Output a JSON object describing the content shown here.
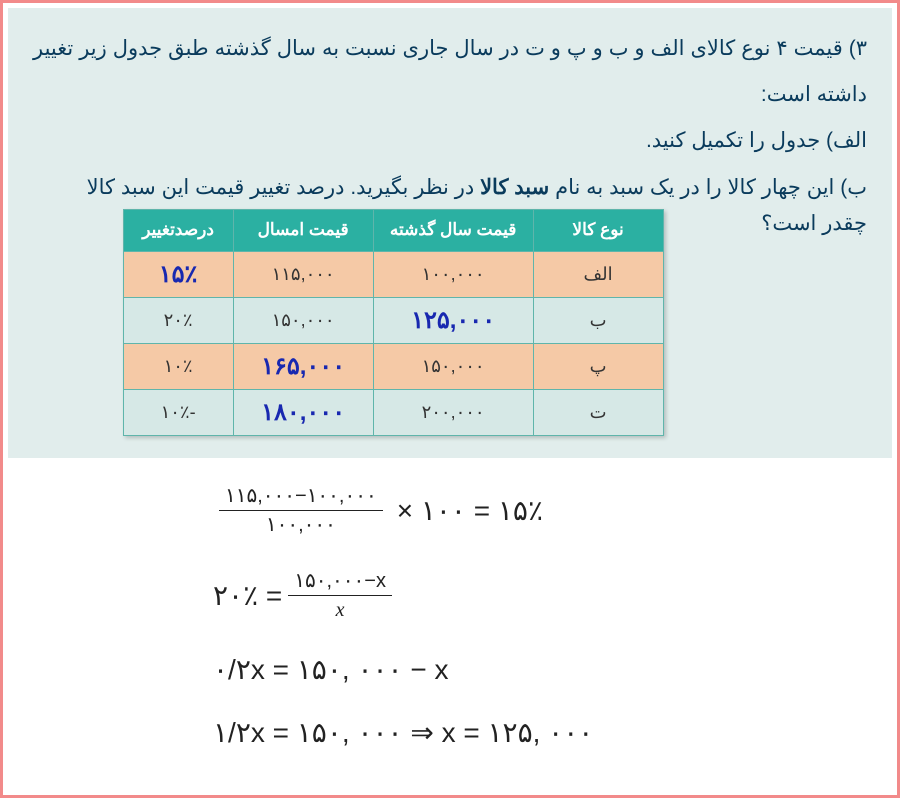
{
  "question": {
    "line1": "۳) قیمت ۴ نوع کالای الف و ب و پ و ت در سال جاری نسبت به سال گذشته طبق جدول زیر تغییر داشته است:",
    "line_alef": "الف) جدول را تکمیل کنید.",
    "line_b_pre": "ب) این چهار کالا را در یک سبد به نام ",
    "line_b_bold": "سبد کالا",
    "line_b_post": " در نظر بگیرید. درصد تغییر قیمت این سبد کالا",
    "line_b_tail": "چقدر است؟"
  },
  "table": {
    "headers": {
      "type": "نوع کالا",
      "last_year": "قیمت سال گذشته",
      "this_year": "قیمت امسال",
      "pct_change": "درصدتغییر"
    },
    "rows": [
      {
        "type": "الف",
        "last": "۱۰۰,۰۰۰",
        "this": "۱۱۵,۰۰۰",
        "pct": "۱۵٪",
        "answer_col": "pct"
      },
      {
        "type": "ب",
        "last": "۱۲۵,۰۰۰",
        "this": "۱۵۰,۰۰۰",
        "pct": "۲۰٪",
        "answer_col": "last"
      },
      {
        "type": "پ",
        "last": "۱۵۰,۰۰۰",
        "this": "۱۶۵,۰۰۰",
        "pct": "۱۰٪",
        "answer_col": "this"
      },
      {
        "type": "ت",
        "last": "۲۰۰,۰۰۰",
        "this": "۱۸۰,۰۰۰",
        "pct": "-۱۰٪",
        "answer_col": "this"
      }
    ],
    "colors": {
      "header_bg": "#2bb0a2",
      "header_fg": "#ffffff",
      "border": "#5fb5ab",
      "row_odd_bg": "#f5c9a6",
      "row_even_bg": "#d6e8e6",
      "answer_fg": "#1828b0"
    }
  },
  "equations": {
    "eq1": {
      "frac_num": "۱۱۵,۰۰۰−۱۰۰,۰۰۰",
      "frac_den": "۱۰۰,۰۰۰",
      "times": "× ۱۰۰ = ۱۵٪"
    },
    "eq2": {
      "lhs": "۲۰٪  =",
      "frac_num": "۱۵۰,۰۰۰−x",
      "frac_den": "x"
    },
    "eq3": "۰/۲x = ۱۵۰, ۰۰۰ − x",
    "eq4": "۱/۲x = ۱۵۰, ۰۰۰ ⇒ x = ۱۲۵, ۰۰۰"
  },
  "styling": {
    "page_bg": "#ffffff",
    "top_bg": "#e1edec",
    "text_color": "#0a3b5c",
    "border_color": "#f28a8a",
    "question_fontsize": 21,
    "equation_fontsize": 28,
    "answer_fontsize": 24
  }
}
